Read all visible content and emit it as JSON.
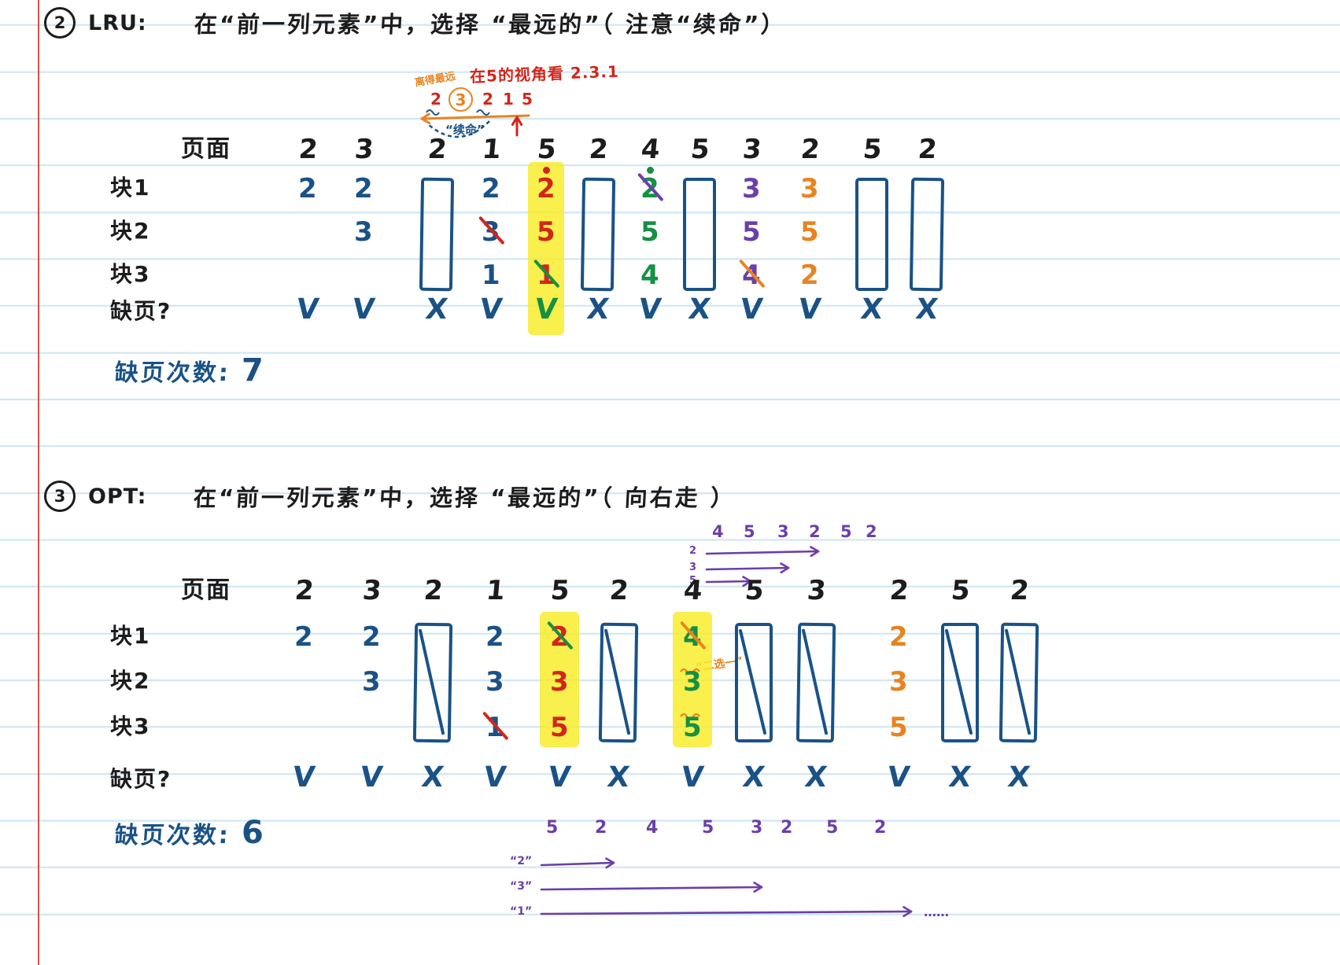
{
  "page": {
    "bg": "#ffffff",
    "rule_color": "#cfe6f3",
    "margin_color": "#dd4f4a"
  },
  "colors": {
    "blue": "#1a5286",
    "black": "#1c1c1c",
    "red": "#d2261b",
    "green": "#169042",
    "purple": "#6b3fa8",
    "orange": "#e88420",
    "highlight": "#f8ec26"
  },
  "lru": {
    "marker": "2",
    "algo": "LRU:",
    "title": "在“前一列元素”中，选择 “最远的”（ 注意“续命”）",
    "annotation": {
      "orange_note": "离得最远",
      "red_note": "在5的视角看 2.3.1",
      "sequence": [
        "2",
        "3",
        "2",
        "1",
        "5"
      ],
      "circled_index": 1,
      "blue_label": "“续命”"
    },
    "table": {
      "corner": "页面",
      "row_labels": [
        "块1",
        "块2",
        "块3"
      ],
      "fault_label": "缺页?",
      "pages": [
        "2",
        "3",
        "2",
        "1",
        "5",
        "2",
        "4",
        "5",
        "3",
        "2",
        "5",
        "2"
      ],
      "columns": [
        {
          "cells": [
            {
              "v": "2",
              "c": "blue"
            }
          ]
        },
        {
          "cells": [
            {
              "v": "2",
              "c": "blue"
            },
            {
              "v": "3",
              "c": "blue"
            }
          ]
        },
        {
          "box": "plain"
        },
        {
          "cells": [
            {
              "v": "2",
              "c": "blue"
            },
            {
              "v": "3",
              "c": "blue",
              "strike": "red"
            },
            {
              "v": "1",
              "c": "blue"
            }
          ]
        },
        {
          "hl": true,
          "dot": "red",
          "cells": [
            {
              "v": "2",
              "c": "red"
            },
            {
              "v": "5",
              "c": "red"
            },
            {
              "v": "1",
              "c": "red",
              "strike": "green"
            }
          ]
        },
        {
          "box": "plain"
        },
        {
          "dot": "green",
          "cells": [
            {
              "v": "2",
              "c": "green",
              "strike": "purple"
            },
            {
              "v": "5",
              "c": "green"
            },
            {
              "v": "4",
              "c": "green"
            }
          ]
        },
        {
          "box": "plain"
        },
        {
          "cells": [
            {
              "v": "3",
              "c": "purple"
            },
            {
              "v": "5",
              "c": "purple"
            },
            {
              "v": "4",
              "c": "purple",
              "strike": "orange"
            }
          ]
        },
        {
          "cells": [
            {
              "v": "3",
              "c": "orange"
            },
            {
              "v": "5",
              "c": "orange"
            },
            {
              "v": "2",
              "c": "orange"
            }
          ]
        },
        {
          "box": "plain"
        },
        {
          "box": "plain"
        }
      ],
      "faults": [
        {
          "m": "check",
          "c": "blue"
        },
        {
          "m": "check",
          "c": "blue"
        },
        {
          "m": "cross",
          "c": "blue"
        },
        {
          "m": "check",
          "c": "blue"
        },
        {
          "m": "check",
          "c": "green"
        },
        {
          "m": "cross",
          "c": "blue"
        },
        {
          "m": "check",
          "c": "blue"
        },
        {
          "m": "cross",
          "c": "blue"
        },
        {
          "m": "check",
          "c": "blue"
        },
        {
          "m": "check",
          "c": "blue"
        },
        {
          "m": "cross",
          "c": "blue"
        },
        {
          "m": "cross",
          "c": "blue"
        }
      ]
    },
    "summary_label": "缺页次数:",
    "summary_value": "7"
  },
  "opt": {
    "marker": "3",
    "algo": "OPT:",
    "title": "在“前一列元素”中，选择 “最远的”（ 向右走 ）",
    "top_annotation": {
      "sequence": [
        "4",
        "5",
        "3",
        "2",
        "5",
        "2"
      ],
      "labels": [
        "2",
        "3",
        "5"
      ]
    },
    "choice_note": "“二选一”",
    "table": {
      "corner": "页面",
      "row_labels": [
        "块1",
        "块2",
        "块3"
      ],
      "fault_label": "缺页?",
      "pages": [
        "2",
        "3",
        "2",
        "1",
        "5",
        "2",
        "4",
        "5",
        "3",
        "2",
        "5",
        "2"
      ],
      "columns": [
        {
          "cells": [
            {
              "v": "2",
              "c": "blue"
            }
          ]
        },
        {
          "cells": [
            {
              "v": "2",
              "c": "blue"
            },
            {
              "v": "3",
              "c": "blue"
            }
          ]
        },
        {
          "box": "slash"
        },
        {
          "cells": [
            {
              "v": "2",
              "c": "blue"
            },
            {
              "v": "3",
              "c": "blue"
            },
            {
              "v": "1",
              "c": "blue",
              "strike": "red"
            }
          ]
        },
        {
          "hl": true,
          "cells": [
            {
              "v": "2",
              "c": "red",
              "strike": "green"
            },
            {
              "v": "3",
              "c": "red"
            },
            {
              "v": "5",
              "c": "red"
            }
          ]
        },
        {
          "box": "slash"
        },
        {
          "hl": true,
          "cells": [
            {
              "v": "4",
              "c": "green",
              "strike": "orange",
              "squig": "orange"
            },
            {
              "v": "3",
              "c": "green",
              "squig": "orange"
            },
            {
              "v": "5",
              "c": "green"
            }
          ]
        },
        {
          "box": "slash"
        },
        {
          "box": "slash"
        },
        {
          "cells": [
            {
              "v": "2",
              "c": "orange"
            },
            {
              "v": "3",
              "c": "orange"
            },
            {
              "v": "5",
              "c": "orange"
            }
          ]
        },
        {
          "box": "slash"
        },
        {
          "box": "slash"
        }
      ],
      "faults": [
        {
          "m": "check",
          "c": "blue"
        },
        {
          "m": "check",
          "c": "blue"
        },
        {
          "m": "cross",
          "c": "blue"
        },
        {
          "m": "check",
          "c": "blue"
        },
        {
          "m": "check",
          "c": "blue"
        },
        {
          "m": "cross",
          "c": "blue"
        },
        {
          "m": "check",
          "c": "blue"
        },
        {
          "m": "cross",
          "c": "blue"
        },
        {
          "m": "cross",
          "c": "blue"
        },
        {
          "m": "check",
          "c": "blue"
        },
        {
          "m": "cross",
          "c": "blue"
        },
        {
          "m": "cross",
          "c": "blue"
        }
      ]
    },
    "bottom_annotation": {
      "sequence": [
        "5",
        "2",
        "4",
        "5",
        "3",
        "2",
        "5",
        "2"
      ],
      "labels": [
        "“2”",
        "“3”",
        "“1”"
      ],
      "ellipsis": "……"
    },
    "summary_label": "缺页次数:",
    "summary_value": "6"
  }
}
